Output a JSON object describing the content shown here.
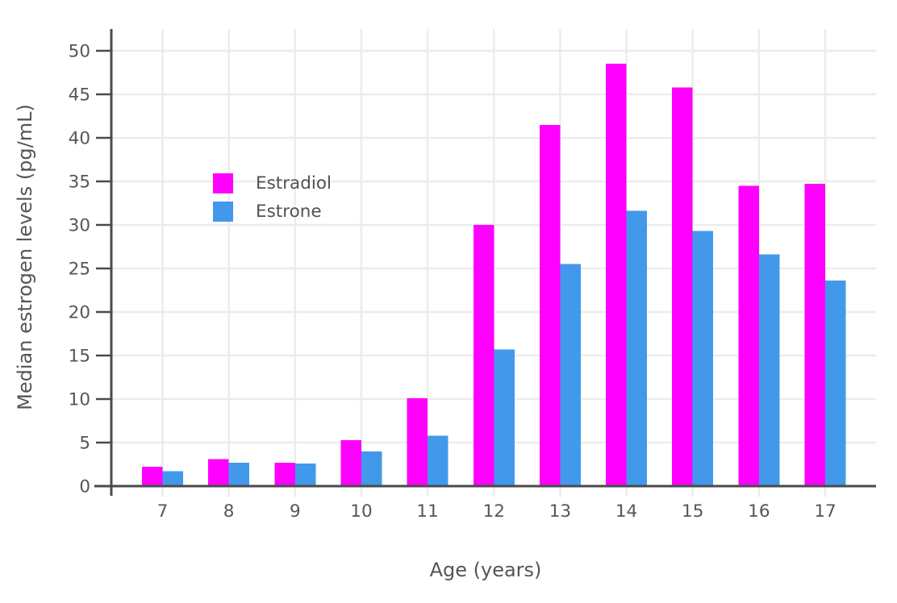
{
  "figure": {
    "title": "",
    "xlabel": "Age (years)",
    "ylabel": "Median estrogen levels (pg/mL)"
  },
  "chart_data": {
    "type": "bar",
    "categories": [
      "7",
      "8",
      "9",
      "10",
      "11",
      "12",
      "13",
      "14",
      "15",
      "16",
      "17"
    ],
    "series": [
      {
        "name": "Estradiol",
        "color": "#FF00FF",
        "values": [
          2.2,
          3.1,
          2.7,
          5.3,
          10.1,
          30.0,
          41.5,
          48.5,
          45.8,
          34.5,
          34.7
        ]
      },
      {
        "name": "Estrone",
        "color": "#4299EC",
        "values": [
          1.7,
          2.7,
          2.6,
          4.0,
          5.8,
          15.7,
          25.5,
          31.6,
          29.3,
          26.6,
          23.6
        ]
      }
    ],
    "title": "",
    "xlabel": "Age (years)",
    "ylabel": "Median estrogen levels (pg/mL)",
    "ylim": [
      0,
      50
    ],
    "yticks": [
      0,
      5,
      10,
      15,
      20,
      25,
      30,
      35,
      40,
      45,
      50
    ],
    "grid": true,
    "grid_color": "#ECECEC",
    "axis_color": "#4A4A4A",
    "tick_label_color": "#565656",
    "background": "#FFFFFF",
    "legend_position": "inside-top-left"
  }
}
